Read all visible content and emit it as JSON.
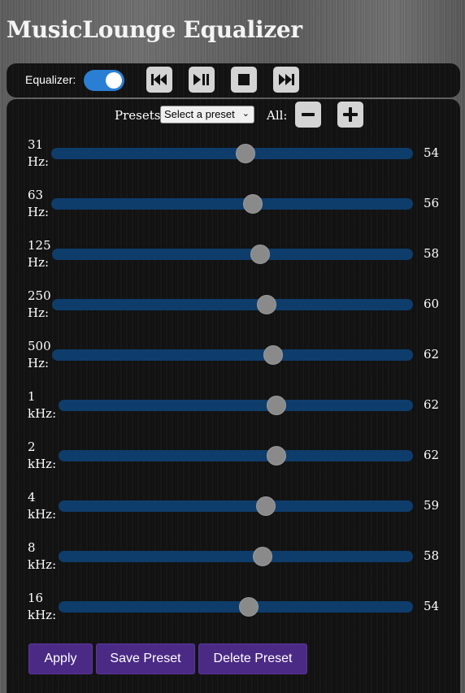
{
  "app": {
    "title": "MusicLounge Equalizer"
  },
  "controls": {
    "equalizer_label": "Equalizer:",
    "equalizer_on": true,
    "buttons": [
      "previous-icon",
      "play-pause-icon",
      "stop-icon",
      "next-icon"
    ]
  },
  "presets": {
    "label": "Presets:",
    "selected": "Select a preset",
    "all_label": "All:"
  },
  "bands": [
    {
      "freq": "31",
      "unit": "Hz:",
      "value": "54"
    },
    {
      "freq": "63",
      "unit": "Hz:",
      "value": "56"
    },
    {
      "freq": "125",
      "unit": "Hz:",
      "value": "58"
    },
    {
      "freq": "250",
      "unit": "Hz:",
      "value": "60"
    },
    {
      "freq": "500",
      "unit": "Hz:",
      "value": "62"
    },
    {
      "freq": "1",
      "unit": "kHz:",
      "value": "62"
    },
    {
      "freq": "2",
      "unit": "kHz:",
      "value": "62"
    },
    {
      "freq": "4",
      "unit": "kHz:",
      "value": "59"
    },
    {
      "freq": "8",
      "unit": "kHz:",
      "value": "58"
    },
    {
      "freq": "16",
      "unit": "kHz:",
      "value": "54"
    }
  ],
  "actions": {
    "apply": "Apply",
    "save": "Save Preset",
    "delete": "Delete Preset"
  },
  "colors": {
    "toggle": "#2a7fd4",
    "track": "#0e3d6c",
    "action_button": "#4b2a86"
  }
}
